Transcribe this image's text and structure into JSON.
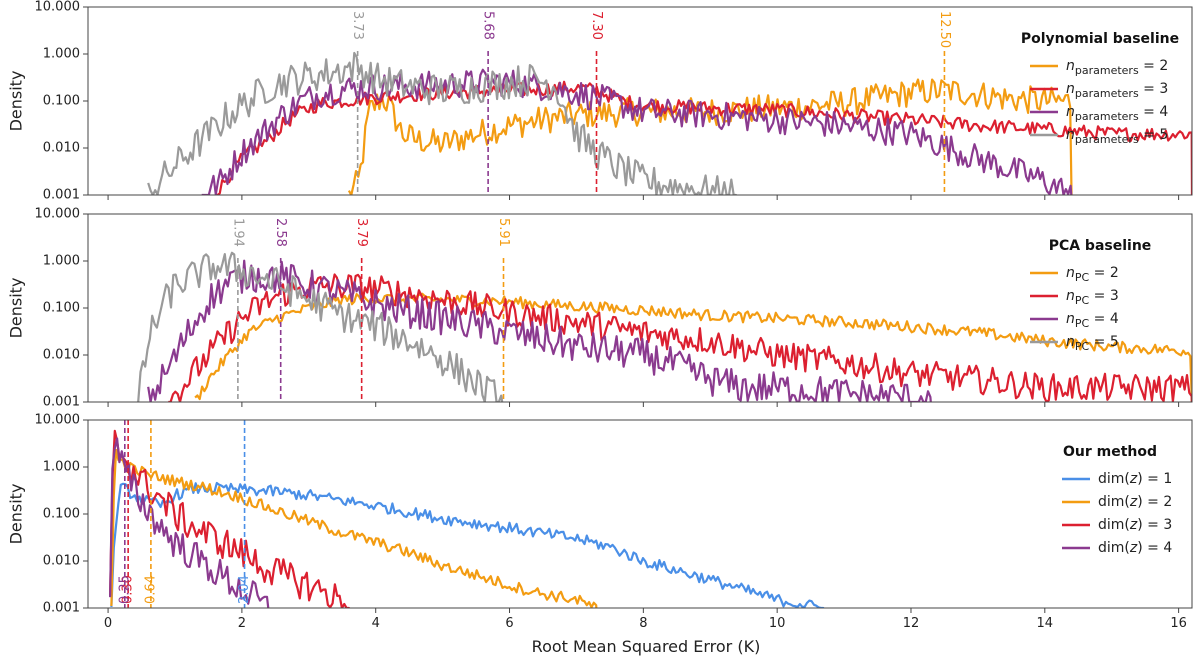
{
  "figure": {
    "xlabel": "Root Mean Squared Error (K)",
    "ylabel": "Density"
  },
  "chart_data": [
    {
      "type": "line",
      "panel_title": "Polynomial baseline",
      "xlim": [
        -0.3,
        16.2
      ],
      "ylim": [
        0.001,
        10
      ],
      "yscale": "log",
      "xticks": [
        0,
        2,
        4,
        6,
        8,
        10,
        12,
        14,
        16
      ],
      "yticks": [
        0.001,
        0.01,
        0.1,
        1,
        10
      ],
      "ytick_labels": [
        "0.001",
        "0.010",
        "0.100",
        "1.000",
        "10.000"
      ],
      "legend_position": "right",
      "series": [
        {
          "name_base": "n",
          "name_sub": "parameters",
          "name_tail": " = 2",
          "color": "#f39c12",
          "noise": 0.3,
          "x": [
            3.6,
            3.75,
            3.9,
            4.1,
            4.2,
            4.4,
            4.6,
            5.0,
            5.5,
            6.0,
            6.5,
            7.0,
            7.5,
            8.0,
            9.0,
            10.0,
            11.0,
            12.0,
            12.5,
            13.0,
            13.5,
            14.0,
            14.4
          ],
          "y": [
            0.001,
            0.002,
            0.06,
            0.12,
            0.08,
            0.02,
            0.015,
            0.012,
            0.02,
            0.03,
            0.04,
            0.05,
            0.055,
            0.06,
            0.06,
            0.07,
            0.09,
            0.15,
            0.17,
            0.14,
            0.11,
            0.1,
            0.1
          ],
          "median": 12.5
        },
        {
          "name_base": "n",
          "name_sub": "parameters",
          "name_tail": " = 3",
          "color": "#dc2030",
          "noise": 0.15,
          "x": [
            1.6,
            1.9,
            2.1,
            2.4,
            2.6,
            2.8,
            3.0,
            3.2,
            3.5,
            4.0,
            5.0,
            6.0,
            6.5,
            7.0,
            7.3,
            7.7,
            8.0,
            9.0,
            10.0,
            11.0,
            12.0,
            13.0,
            14.0,
            15.0,
            16.2
          ],
          "y": [
            0.001,
            0.004,
            0.008,
            0.015,
            0.03,
            0.05,
            0.07,
            0.09,
            0.1,
            0.12,
            0.15,
            0.17,
            0.18,
            0.19,
            0.17,
            0.1,
            0.08,
            0.07,
            0.065,
            0.05,
            0.04,
            0.03,
            0.025,
            0.02,
            0.02
          ],
          "median": 7.3
        },
        {
          "name_base": "n",
          "name_sub": "parameters",
          "name_tail": " = 4",
          "color": "#8b3a8f",
          "noise": 0.3,
          "x": [
            1.4,
            1.7,
            2.0,
            2.3,
            2.6,
            2.9,
            3.2,
            3.5,
            4.0,
            5.0,
            5.7,
            6.0,
            6.5,
            7.0,
            7.5,
            8.0,
            9.0,
            10.0,
            11.0,
            12.0,
            13.0,
            14.0,
            14.4
          ],
          "y": [
            0.001,
            0.002,
            0.008,
            0.02,
            0.05,
            0.1,
            0.15,
            0.18,
            0.2,
            0.22,
            0.25,
            0.25,
            0.2,
            0.15,
            0.1,
            0.06,
            0.05,
            0.04,
            0.03,
            0.02,
            0.006,
            0.002,
            0.001
          ],
          "median": 5.68
        },
        {
          "name_base": "n",
          "name_sub": "parameters",
          "name_tail": " = 5",
          "color": "#9a9a9a",
          "noise": 0.35,
          "x": [
            0.6,
            0.9,
            1.2,
            1.5,
            1.8,
            2.1,
            2.4,
            2.7,
            3.0,
            3.3,
            3.7,
            4.0,
            4.5,
            5.0,
            5.5,
            6.0,
            6.4,
            6.7,
            7.0,
            7.3,
            7.6,
            8.0,
            8.5,
            9.0,
            9.4
          ],
          "y": [
            0.001,
            0.003,
            0.008,
            0.02,
            0.05,
            0.1,
            0.2,
            0.28,
            0.33,
            0.4,
            0.55,
            0.3,
            0.2,
            0.17,
            0.2,
            0.25,
            0.3,
            0.2,
            0.02,
            0.008,
            0.004,
            0.002,
            0.0015,
            0.0012,
            0.001
          ],
          "median": 3.73
        }
      ],
      "median_labels": [
        "12.50",
        "7.30",
        "5.68",
        "3.73"
      ]
    },
    {
      "type": "line",
      "panel_title": "PCA baseline",
      "xlim": [
        -0.3,
        16.2
      ],
      "ylim": [
        0.001,
        10
      ],
      "yscale": "log",
      "xticks": [
        0,
        2,
        4,
        6,
        8,
        10,
        12,
        14,
        16
      ],
      "yticks": [
        0.001,
        0.01,
        0.1,
        1,
        10
      ],
      "ytick_labels": [
        "0.001",
        "0.010",
        "0.100",
        "1.000",
        "10.000"
      ],
      "legend_position": "right",
      "series": [
        {
          "name_base": "n",
          "name_sub": "PC",
          "name_tail": " = 2",
          "color": "#f39c12",
          "noise": 0.12,
          "x": [
            1.3,
            1.5,
            1.8,
            2.1,
            2.5,
            3.0,
            3.5,
            4.0,
            5.0,
            5.9,
            6.5,
            7.0,
            8.0,
            9.0,
            10.0,
            11.0,
            12.0,
            13.0,
            14.0,
            15.0,
            16.2
          ],
          "y": [
            0.001,
            0.003,
            0.01,
            0.03,
            0.06,
            0.1,
            0.15,
            0.16,
            0.15,
            0.14,
            0.12,
            0.11,
            0.09,
            0.07,
            0.06,
            0.05,
            0.04,
            0.03,
            0.02,
            0.015,
            0.012
          ],
          "median": 5.91
        },
        {
          "name_base": "n",
          "name_sub": "PC",
          "name_tail": " = 3",
          "color": "#dc2030",
          "noise": 0.3,
          "x": [
            0.9,
            1.2,
            1.5,
            1.8,
            2.0,
            2.3,
            2.6,
            2.9,
            3.3,
            3.8,
            4.5,
            5.0,
            6.0,
            7.0,
            8.0,
            9.0,
            10.0,
            11.0,
            12.0,
            13.0,
            14.0,
            15.0,
            16.2
          ],
          "y": [
            0.001,
            0.003,
            0.01,
            0.03,
            0.06,
            0.12,
            0.2,
            0.26,
            0.3,
            0.28,
            0.2,
            0.15,
            0.08,
            0.05,
            0.03,
            0.02,
            0.01,
            0.007,
            0.004,
            0.003,
            0.002,
            0.002,
            0.002
          ],
          "median": 3.79
        },
        {
          "name_base": "n",
          "name_sub": "PC",
          "name_tail": " = 4",
          "color": "#8b3a8f",
          "noise": 0.35,
          "x": [
            0.6,
            0.9,
            1.2,
            1.5,
            1.8,
            2.1,
            2.6,
            3.0,
            3.5,
            4.0,
            5.0,
            6.0,
            7.0,
            8.0,
            8.5,
            9.0,
            9.5,
            10.0,
            11.0,
            12.0,
            12.3
          ],
          "y": [
            0.001,
            0.005,
            0.03,
            0.15,
            0.35,
            0.5,
            0.45,
            0.3,
            0.2,
            0.12,
            0.06,
            0.03,
            0.015,
            0.01,
            0.006,
            0.003,
            0.002,
            0.002,
            0.0015,
            0.0012,
            0.001
          ],
          "median": 2.58
        },
        {
          "name_base": "n",
          "name_sub": "PC",
          "name_tail": " = 5",
          "color": "#9a9a9a",
          "noise": 0.35,
          "x": [
            0.45,
            0.6,
            0.8,
            1.0,
            1.3,
            1.6,
            1.9,
            2.2,
            2.6,
            3.0,
            3.5,
            4.0,
            4.5,
            5.0,
            5.3,
            5.6,
            5.9
          ],
          "y": [
            0.001,
            0.02,
            0.1,
            0.3,
            0.5,
            0.8,
            0.7,
            0.5,
            0.3,
            0.15,
            0.07,
            0.04,
            0.02,
            0.008,
            0.004,
            0.002,
            0.001
          ],
          "median": 1.94
        }
      ],
      "median_labels": [
        "5.91",
        "3.79",
        "2.58",
        "1.94"
      ]
    },
    {
      "type": "line",
      "panel_title": "Our method",
      "xlim": [
        -0.3,
        16.2
      ],
      "ylim": [
        0.001,
        10
      ],
      "yscale": "log",
      "xticks": [
        0,
        2,
        4,
        6,
        8,
        10,
        12,
        14,
        16
      ],
      "yticks": [
        0.001,
        0.01,
        0.1,
        1,
        10
      ],
      "ytick_labels": [
        "0.001",
        "0.010",
        "0.100",
        "1.000",
        "10.000"
      ],
      "legend_position": "right",
      "series": [
        {
          "name_base": "dim(",
          "name_sub": "",
          "name_italic": "z",
          "name_tail": ") = 1",
          "color": "#4a8fe7",
          "noise": 0.12,
          "x": [
            0.05,
            0.1,
            0.2,
            0.3,
            0.5,
            0.8,
            1.0,
            1.3,
            1.6,
            2.0,
            2.5,
            3.0,
            4.0,
            5.0,
            6.0,
            7.0,
            7.5,
            8.0,
            9.0,
            10.0,
            10.7
          ],
          "y": [
            0.001,
            0.05,
            0.4,
            0.3,
            0.2,
            0.15,
            0.25,
            0.35,
            0.35,
            0.33,
            0.3,
            0.25,
            0.15,
            0.08,
            0.05,
            0.03,
            0.02,
            0.01,
            0.004,
            0.0015,
            0.001
          ],
          "median": 2.04
        },
        {
          "name_base": "dim(",
          "name_sub": "",
          "name_italic": "z",
          "name_tail": ") = 2",
          "color": "#f39c12",
          "noise": 0.12,
          "x": [
            0.05,
            0.1,
            0.15,
            0.3,
            0.6,
            1.0,
            1.5,
            2.0,
            2.5,
            3.0,
            3.5,
            4.0,
            4.5,
            5.0,
            5.5,
            6.0,
            6.5,
            7.0,
            7.3
          ],
          "y": [
            0.001,
            2.5,
            1.5,
            1.0,
            0.7,
            0.5,
            0.35,
            0.22,
            0.12,
            0.07,
            0.04,
            0.025,
            0.015,
            0.008,
            0.005,
            0.003,
            0.002,
            0.0015,
            0.001
          ],
          "median": 0.64
        },
        {
          "name_base": "dim(",
          "name_sub": "",
          "name_italic": "z",
          "name_tail": ") = 3",
          "color": "#dc2030",
          "noise": 0.35,
          "x": [
            0.03,
            0.08,
            0.12,
            0.2,
            0.3,
            0.5,
            0.8,
            1.0,
            1.3,
            1.6,
            2.0,
            2.3,
            2.6,
            3.0,
            3.3,
            3.6
          ],
          "y": [
            0.001,
            3.8,
            3.0,
            2.0,
            1.2,
            0.5,
            0.2,
            0.1,
            0.05,
            0.03,
            0.015,
            0.008,
            0.005,
            0.003,
            0.002,
            0.001
          ],
          "median": 0.3
        },
        {
          "name_base": "dim(",
          "name_sub": "",
          "name_italic": "z",
          "name_tail": ") = 4",
          "color": "#8b3a8f",
          "noise": 0.35,
          "x": [
            0.03,
            0.07,
            0.1,
            0.18,
            0.25,
            0.4,
            0.6,
            0.8,
            1.0,
            1.3,
            1.6,
            1.9,
            2.1,
            2.4
          ],
          "y": [
            0.001,
            3.5,
            3.2,
            1.5,
            0.8,
            0.3,
            0.12,
            0.05,
            0.025,
            0.012,
            0.006,
            0.003,
            0.002,
            0.001
          ],
          "median": 0.25
        }
      ],
      "median_labels": [
        "2.04",
        "0.64",
        "0.30",
        "0.25"
      ]
    }
  ]
}
